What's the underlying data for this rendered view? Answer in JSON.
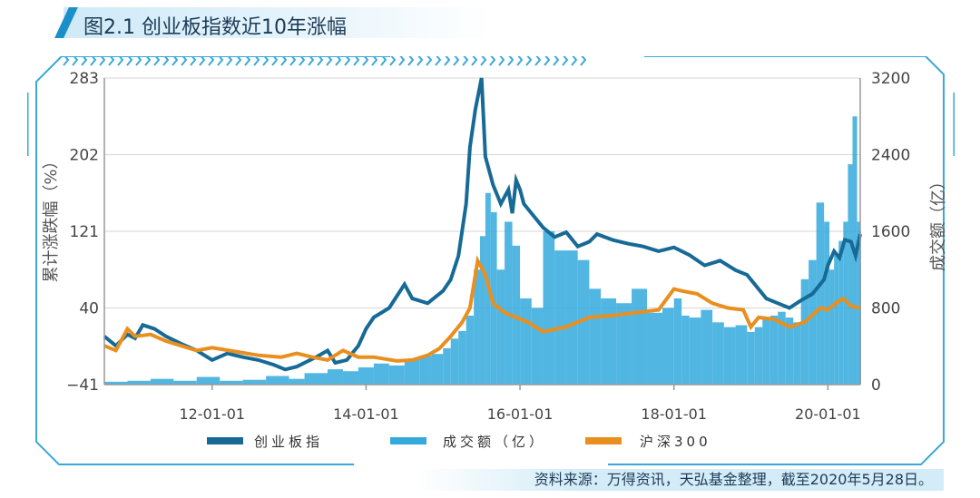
{
  "title": "图2.1 创业板指数近10年涨幅",
  "source": "资料来源：万得资讯，天弘基金整理，截至2020年5月28日。",
  "chart_data": {
    "type": "line+bar",
    "title": "图2.1 创业板指数近10年涨幅",
    "ylabel_left": "累计涨跌幅（%）",
    "ylabel_right": "成交额（亿）",
    "left_ticks": [
      "283",
      "202",
      "121",
      "40",
      "−41"
    ],
    "right_ticks": [
      "3200",
      "2400",
      "1600",
      "800",
      "0"
    ],
    "ylim_left": [
      -41,
      283
    ],
    "ylim_right": [
      0,
      3200
    ],
    "x_ticks": [
      "12-01-01",
      "14-01-01",
      "16-01-01",
      "18-01-01",
      "20-01-01"
    ],
    "x_tick_years": [
      2012,
      2014,
      2016,
      2018,
      2020
    ],
    "xlim": [
      2010.6,
      2020.42
    ],
    "legend": [
      "创业板指",
      "成交额（亿）",
      "沪深300"
    ],
    "colors": {
      "gem": "#176a96",
      "turnover": "#33a9dc",
      "hs300": "#e88f1f",
      "frame": "#3aa8d8"
    },
    "series": [
      {
        "name": "创业板指",
        "x": [
          2010.6,
          2010.75,
          2010.9,
          2011.0,
          2011.1,
          2011.25,
          2011.4,
          2011.6,
          2011.8,
          2012.0,
          2012.2,
          2012.4,
          2012.6,
          2012.8,
          2012.95,
          2013.1,
          2013.2,
          2013.35,
          2013.5,
          2013.6,
          2013.75,
          2013.9,
          2014.0,
          2014.1,
          2014.3,
          2014.5,
          2014.6,
          2014.8,
          2015.0,
          2015.1,
          2015.2,
          2015.3,
          2015.35,
          2015.42,
          2015.5,
          2015.55,
          2015.65,
          2015.75,
          2015.85,
          2015.9,
          2015.95,
          2016.0,
          2016.05,
          2016.15,
          2016.3,
          2016.45,
          2016.6,
          2016.75,
          2016.9,
          2017.0,
          2017.2,
          2017.4,
          2017.6,
          2017.8,
          2018.0,
          2018.2,
          2018.4,
          2018.6,
          2018.8,
          2018.95,
          2019.1,
          2019.2,
          2019.35,
          2019.5,
          2019.65,
          2019.8,
          2019.95,
          2020.0,
          2020.08,
          2020.15,
          2020.22,
          2020.3,
          2020.36,
          2020.42
        ],
        "values": [
          10,
          0,
          12,
          8,
          22,
          18,
          10,
          2,
          -5,
          -15,
          -8,
          -12,
          -15,
          -20,
          -25,
          -22,
          -18,
          -12,
          -5,
          -18,
          -15,
          0,
          18,
          30,
          40,
          65,
          50,
          45,
          58,
          70,
          95,
          150,
          210,
          250,
          283,
          200,
          170,
          150,
          165,
          140,
          175,
          165,
          150,
          140,
          125,
          115,
          120,
          105,
          110,
          118,
          112,
          108,
          105,
          100,
          104,
          96,
          85,
          90,
          80,
          75,
          60,
          50,
          45,
          40,
          48,
          55,
          70,
          85,
          100,
          93,
          112,
          110,
          95,
          118
        ]
      },
      {
        "name": "沪深300",
        "x": [
          2010.6,
          2010.75,
          2010.9,
          2011.0,
          2011.2,
          2011.4,
          2011.6,
          2011.8,
          2012.0,
          2012.3,
          2012.6,
          2012.9,
          2013.1,
          2013.3,
          2013.5,
          2013.7,
          2013.9,
          2014.1,
          2014.4,
          2014.6,
          2014.8,
          2014.95,
          2015.1,
          2015.25,
          2015.35,
          2015.45,
          2015.55,
          2015.65,
          2015.8,
          2015.95,
          2016.1,
          2016.3,
          2016.6,
          2016.9,
          2017.2,
          2017.5,
          2017.8,
          2018.0,
          2018.1,
          2018.3,
          2018.5,
          2018.7,
          2018.9,
          2019.0,
          2019.1,
          2019.3,
          2019.5,
          2019.7,
          2019.9,
          2020.0,
          2020.1,
          2020.2,
          2020.3,
          2020.42
        ],
        "values": [
          0,
          -5,
          18,
          10,
          12,
          5,
          0,
          -5,
          -2,
          -6,
          -10,
          -12,
          -8,
          -12,
          -15,
          -5,
          -12,
          -12,
          -16,
          -15,
          -10,
          -3,
          10,
          25,
          40,
          90,
          75,
          45,
          35,
          30,
          25,
          15,
          20,
          30,
          32,
          35,
          38,
          60,
          58,
          55,
          45,
          40,
          38,
          20,
          30,
          28,
          20,
          25,
          40,
          38,
          45,
          50,
          42,
          40
        ]
      }
    ],
    "turnover": {
      "name": "成交额（亿）",
      "x": [
        2010.6,
        2010.9,
        2011.2,
        2011.5,
        2011.8,
        2012.1,
        2012.4,
        2012.7,
        2013.0,
        2013.2,
        2013.5,
        2013.7,
        2013.9,
        2014.1,
        2014.3,
        2014.5,
        2014.7,
        2014.85,
        2015.0,
        2015.1,
        2015.2,
        2015.3,
        2015.4,
        2015.48,
        2015.55,
        2015.62,
        2015.7,
        2015.8,
        2015.9,
        2016.0,
        2016.15,
        2016.3,
        2016.45,
        2016.6,
        2016.75,
        2016.9,
        2017.05,
        2017.25,
        2017.45,
        2017.65,
        2017.85,
        2018.0,
        2018.1,
        2018.2,
        2018.35,
        2018.5,
        2018.65,
        2018.8,
        2018.95,
        2019.05,
        2019.15,
        2019.25,
        2019.35,
        2019.45,
        2019.55,
        2019.65,
        2019.75,
        2019.85,
        2019.95,
        2020.02,
        2020.08,
        2020.14,
        2020.2,
        2020.26,
        2020.32,
        2020.38,
        2020.42
      ],
      "values": [
        30,
        40,
        60,
        40,
        80,
        40,
        50,
        90,
        60,
        120,
        160,
        140,
        180,
        220,
        200,
        260,
        300,
        320,
        380,
        480,
        560,
        720,
        1200,
        1550,
        2000,
        1800,
        1200,
        1700,
        1450,
        900,
        800,
        1600,
        1400,
        1400,
        1300,
        1000,
        900,
        850,
        1000,
        750,
        800,
        900,
        720,
        700,
        780,
        650,
        600,
        620,
        550,
        600,
        680,
        720,
        760,
        700,
        650,
        1100,
        1300,
        1900,
        1700,
        1200,
        1350,
        1500,
        1700,
        2300,
        2800,
        1700,
        1600
      ]
    }
  }
}
